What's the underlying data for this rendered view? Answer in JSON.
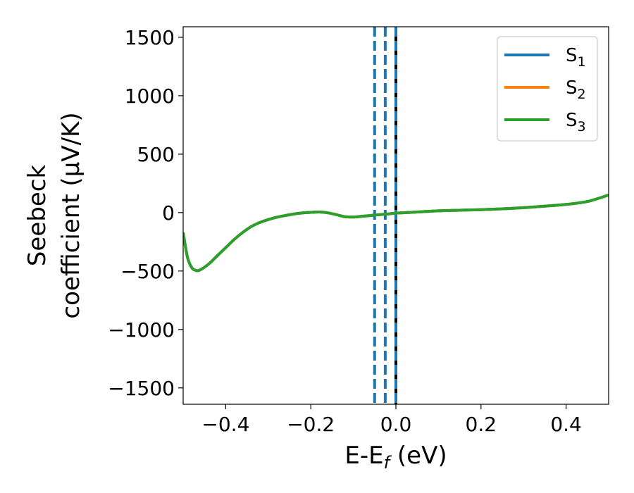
{
  "chart_data": {
    "type": "line",
    "xlabel": "E-E",
    "xlabel_sub": "f",
    "xlabel_unit": " (eV)",
    "ylabel_line1": "Seebeck",
    "ylabel_line2": "coefficient  (μV/K)",
    "xlim": [
      -0.5,
      0.5
    ],
    "ylim": [
      -1640,
      1590
    ],
    "xticks": [
      -0.4,
      -0.2,
      0.0,
      0.2,
      0.4
    ],
    "xtick_labels": [
      "−0.4",
      "−0.2",
      "0.0",
      "0.2",
      "0.4"
    ],
    "yticks": [
      -1500,
      -1000,
      -500,
      0,
      500,
      1000,
      1500
    ],
    "ytick_labels": [
      "−1500",
      "−1000",
      "−500",
      "0",
      "500",
      "1000",
      "1500"
    ],
    "grid": false,
    "legend_position": "top-right",
    "series": [
      {
        "name": "S",
        "sub": "1",
        "color": "#1f77b4"
      },
      {
        "name": "S",
        "sub": "2",
        "color": "#ff7f0e"
      },
      {
        "name": "S",
        "sub": "3",
        "color": "#2ca02c"
      }
    ],
    "curve": {
      "x": [
        -0.5,
        -0.49,
        -0.48,
        -0.47,
        -0.46,
        -0.44,
        -0.42,
        -0.4,
        -0.38,
        -0.36,
        -0.34,
        -0.32,
        -0.3,
        -0.28,
        -0.26,
        -0.24,
        -0.22,
        -0.2,
        -0.18,
        -0.16,
        -0.14,
        -0.12,
        -0.1,
        -0.08,
        -0.06,
        -0.04,
        -0.02,
        0.0,
        0.05,
        0.1,
        0.15,
        0.2,
        0.25,
        0.3,
        0.35,
        0.4,
        0.45,
        0.5
      ],
      "y": [
        -170,
        -380,
        -470,
        -495,
        -490,
        -440,
        -370,
        -300,
        -230,
        -170,
        -120,
        -85,
        -60,
        -40,
        -25,
        -12,
        -3,
        2,
        5,
        -2,
        -18,
        -35,
        -38,
        -32,
        -25,
        -18,
        -12,
        -5,
        5,
        15,
        20,
        25,
        32,
        42,
        55,
        70,
        95,
        150
      ],
      "colors": [
        "#1f77b4",
        "#ff7f0e",
        "#2ca02c"
      ]
    },
    "vertical_lines": [
      {
        "x": -0.05,
        "style": "dashed",
        "color": "#1f77b4"
      },
      {
        "x": -0.025,
        "style": "dashed",
        "color": "#1f77b4"
      },
      {
        "x": 0.0,
        "style": "solid",
        "color": "#000000"
      },
      {
        "x": 0.0,
        "style": "dashed",
        "color": "#1f77b4"
      }
    ]
  }
}
